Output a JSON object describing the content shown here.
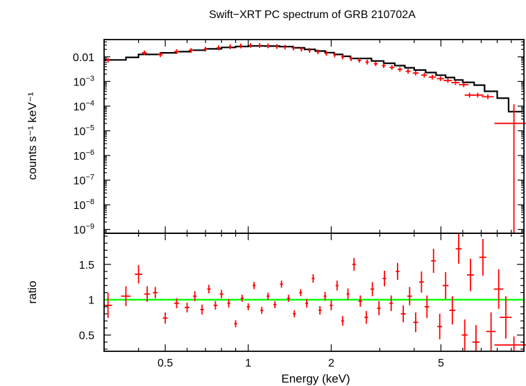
{
  "chart_data": [
    {
      "type": "scatter",
      "panel": "spectrum",
      "title": "Swift−XRT PC spectrum of GRB 210702A",
      "ylabel": "counts s⁻¹ keV⁻¹",
      "xscale": "log",
      "yscale": "log",
      "xlim": [
        0.3,
        10.0
      ],
      "ylim": [
        7e-10,
        0.05
      ],
      "y_ticks": [
        {
          "value": 0.01,
          "label": "0.01"
        },
        {
          "value": 0.001,
          "base": "10",
          "exp": "−3"
        },
        {
          "value": 0.0001,
          "base": "10",
          "exp": "−4"
        },
        {
          "value": 1e-05,
          "base": "10",
          "exp": "−5"
        },
        {
          "value": 1e-06,
          "base": "10",
          "exp": "−6"
        },
        {
          "value": 1e-07,
          "base": "10",
          "exp": "−7"
        },
        {
          "value": 1e-08,
          "base": "10",
          "exp": "−8"
        },
        {
          "value": 1e-09,
          "base": "10",
          "exp": "−9"
        }
      ],
      "series": [
        {
          "role": "data",
          "color": "#ff0000",
          "points": [
            [
              0.31,
              0.0072,
              0.015
            ],
            [
              0.42,
              0.0145,
              0.02
            ],
            [
              0.48,
              0.0122,
              0.02
            ],
            [
              0.55,
              0.0163,
              0.02
            ],
            [
              0.62,
              0.0182,
              0.02
            ],
            [
              0.7,
              0.0205,
              0.015
            ],
            [
              0.78,
              0.0232,
              0.015
            ],
            [
              0.86,
              0.0255,
              0.012
            ],
            [
              0.94,
              0.0275,
              0.012
            ],
            [
              1.02,
              0.029,
              0.01
            ],
            [
              1.1,
              0.0285,
              0.01
            ],
            [
              1.18,
              0.0278,
              0.01
            ],
            [
              1.27,
              0.0262,
              0.01
            ],
            [
              1.36,
              0.0248,
              0.01
            ],
            [
              1.46,
              0.0228,
              0.01
            ],
            [
              1.56,
              0.0205,
              0.01
            ],
            [
              1.67,
              0.0182,
              0.01
            ],
            [
              1.79,
              0.016,
              0.012
            ],
            [
              1.92,
              0.0138,
              0.012
            ],
            [
              2.06,
              0.0118,
              0.012
            ],
            [
              2.2,
              0.0098,
              0.012
            ],
            [
              2.36,
              0.0084,
              0.012
            ],
            [
              2.53,
              0.0072,
              0.015
            ],
            [
              2.7,
              0.0061,
              0.015
            ],
            [
              2.9,
              0.0052,
              0.015
            ],
            [
              3.1,
              0.0044,
              0.015
            ],
            [
              3.32,
              0.0037,
              0.02
            ],
            [
              3.55,
              0.0031,
              0.02
            ],
            [
              3.8,
              0.0026,
              0.02
            ],
            [
              4.05,
              0.0022,
              0.025
            ],
            [
              4.35,
              0.0018,
              0.025
            ],
            [
              4.65,
              0.0015,
              0.03
            ],
            [
              4.98,
              0.0013,
              0.03
            ],
            [
              5.3,
              0.0011,
              0.035
            ],
            [
              5.65,
              0.0009,
              0.035
            ],
            [
              6.05,
              0.00074,
              0.04
            ],
            [
              6.35,
              0.00028,
              0.04
            ],
            [
              6.8,
              0.00028,
              0.05
            ],
            [
              7.4,
              0.00024,
              0.05
            ],
            [
              9.2,
              2e-05,
              0.15
            ]
          ]
        },
        {
          "role": "model",
          "color": "#000000",
          "steps": [
            [
              0.3,
              0.0075
            ],
            [
              0.36,
              0.0095
            ],
            [
              0.4,
              0.0125
            ],
            [
              0.48,
              0.0145
            ],
            [
              0.55,
              0.0162
            ],
            [
              0.62,
              0.0185
            ],
            [
              0.7,
              0.021
            ],
            [
              0.8,
              0.024
            ],
            [
              0.9,
              0.0262
            ],
            [
              1.0,
              0.0275
            ],
            [
              1.15,
              0.0272
            ],
            [
              1.3,
              0.026
            ],
            [
              1.45,
              0.0232
            ],
            [
              1.6,
              0.02
            ],
            [
              1.75,
              0.0172
            ],
            [
              1.9,
              0.0148
            ],
            [
              2.05,
              0.0125
            ],
            [
              2.2,
              0.0105
            ],
            [
              2.35,
              0.0086
            ],
            [
              2.8,
              0.0068
            ],
            [
              3.1,
              0.0055
            ],
            [
              3.4,
              0.0044
            ],
            [
              3.7,
              0.0036
            ],
            [
              4.0,
              0.0029
            ],
            [
              4.4,
              0.0023
            ],
            [
              4.8,
              0.0018
            ],
            [
              5.2,
              0.00145
            ],
            [
              5.6,
              0.00115
            ],
            [
              6.0,
              0.00092
            ],
            [
              6.6,
              0.00071
            ],
            [
              7.2,
              0.0004
            ],
            [
              8.0,
              0.00021
            ],
            [
              8.8,
              6e-05
            ],
            [
              10.0,
              6e-05
            ]
          ]
        }
      ]
    },
    {
      "type": "scatter",
      "panel": "ratio",
      "xlabel": "Energy (keV)",
      "ylabel": "ratio",
      "xscale": "log",
      "yscale": "linear",
      "xlim": [
        0.3,
        10.0
      ],
      "ylim": [
        0.27,
        1.94
      ],
      "x_ticks": [
        {
          "value": 0.5,
          "label": "0.5"
        },
        {
          "value": 1,
          "label": "1"
        },
        {
          "value": 2,
          "label": "2"
        },
        {
          "value": 5,
          "label": "5"
        }
      ],
      "y_ticks": [
        {
          "value": 0.5,
          "label": "0.5"
        },
        {
          "value": 1,
          "label": "1"
        },
        {
          "value": 1.5,
          "label": "1.5"
        }
      ],
      "reference_line": {
        "y": 1,
        "color": "#00ff00"
      },
      "series": [
        {
          "role": "data",
          "color": "#ff0000",
          "points": [
            [
              0.31,
              0.92,
              0.18,
              0.035
            ],
            [
              0.36,
              1.05,
              0.14,
              0.04
            ],
            [
              0.4,
              1.36,
              0.13,
              0.03
            ],
            [
              0.43,
              1.08,
              0.11,
              0.025
            ],
            [
              0.46,
              1.1,
              0.08,
              0.02
            ],
            [
              0.5,
              0.74,
              0.08,
              0.02
            ],
            [
              0.55,
              0.95,
              0.07,
              0.02
            ],
            [
              0.6,
              0.89,
              0.07,
              0.02
            ],
            [
              0.64,
              1.05,
              0.07,
              0.015
            ],
            [
              0.68,
              0.86,
              0.07,
              0.015
            ],
            [
              0.72,
              1.15,
              0.06,
              0.015
            ],
            [
              0.76,
              0.92,
              0.06,
              0.015
            ],
            [
              0.8,
              1.08,
              0.06,
              0.015
            ],
            [
              0.85,
              0.95,
              0.06,
              0.012
            ],
            [
              0.9,
              0.66,
              0.05,
              0.012
            ],
            [
              0.95,
              1.02,
              0.05,
              0.012
            ],
            [
              1.0,
              0.9,
              0.05,
              0.012
            ],
            [
              1.05,
              1.2,
              0.05,
              0.012
            ],
            [
              1.12,
              0.85,
              0.05,
              0.012
            ],
            [
              1.18,
              1.05,
              0.05,
              0.012
            ],
            [
              1.25,
              0.93,
              0.05,
              0.012
            ],
            [
              1.32,
              1.22,
              0.05,
              0.012
            ],
            [
              1.4,
              1.02,
              0.05,
              0.012
            ],
            [
              1.47,
              0.8,
              0.05,
              0.012
            ],
            [
              1.55,
              1.1,
              0.05,
              0.012
            ],
            [
              1.63,
              0.95,
              0.06,
              0.012
            ],
            [
              1.72,
              1.3,
              0.06,
              0.012
            ],
            [
              1.82,
              0.85,
              0.06,
              0.012
            ],
            [
              1.9,
              1.05,
              0.06,
              0.012
            ],
            [
              2.0,
              0.92,
              0.07,
              0.012
            ],
            [
              2.1,
              1.2,
              0.07,
              0.012
            ],
            [
              2.2,
              0.7,
              0.07,
              0.012
            ],
            [
              2.3,
              1.08,
              0.08,
              0.012
            ],
            [
              2.42,
              1.5,
              0.09,
              0.015
            ],
            [
              2.55,
              0.98,
              0.08,
              0.015
            ],
            [
              2.68,
              0.75,
              0.09,
              0.015
            ],
            [
              2.82,
              1.15,
              0.1,
              0.015
            ],
            [
              2.98,
              0.88,
              0.1,
              0.015
            ],
            [
              3.12,
              1.3,
              0.11,
              0.015
            ],
            [
              3.3,
              0.95,
              0.11,
              0.015
            ],
            [
              3.48,
              1.4,
              0.12,
              0.015
            ],
            [
              3.65,
              0.8,
              0.12,
              0.02
            ],
            [
              3.85,
              1.05,
              0.13,
              0.02
            ],
            [
              4.05,
              0.68,
              0.14,
              0.02
            ],
            [
              4.25,
              1.25,
              0.15,
              0.02
            ],
            [
              4.45,
              0.9,
              0.16,
              0.02
            ],
            [
              4.7,
              1.55,
              0.17,
              0.02
            ],
            [
              4.95,
              0.62,
              0.18,
              0.02
            ],
            [
              5.2,
              1.2,
              0.19,
              0.025
            ],
            [
              5.5,
              0.85,
              0.2,
              0.025
            ],
            [
              5.8,
              1.72,
              0.21,
              0.025
            ],
            [
              6.1,
              0.5,
              0.22,
              0.025
            ],
            [
              6.4,
              1.35,
              0.23,
              0.03
            ],
            [
              6.7,
              0.4,
              0.24,
              0.03
            ],
            [
              7.1,
              1.6,
              0.26,
              0.03
            ],
            [
              7.6,
              0.55,
              0.27,
              0.04
            ],
            [
              8.1,
              1.15,
              0.28,
              0.04
            ],
            [
              8.6,
              0.75,
              0.3,
              0.05
            ],
            [
              9.2,
              0.36,
              0.12,
              0.15
            ]
          ]
        }
      ]
    }
  ]
}
